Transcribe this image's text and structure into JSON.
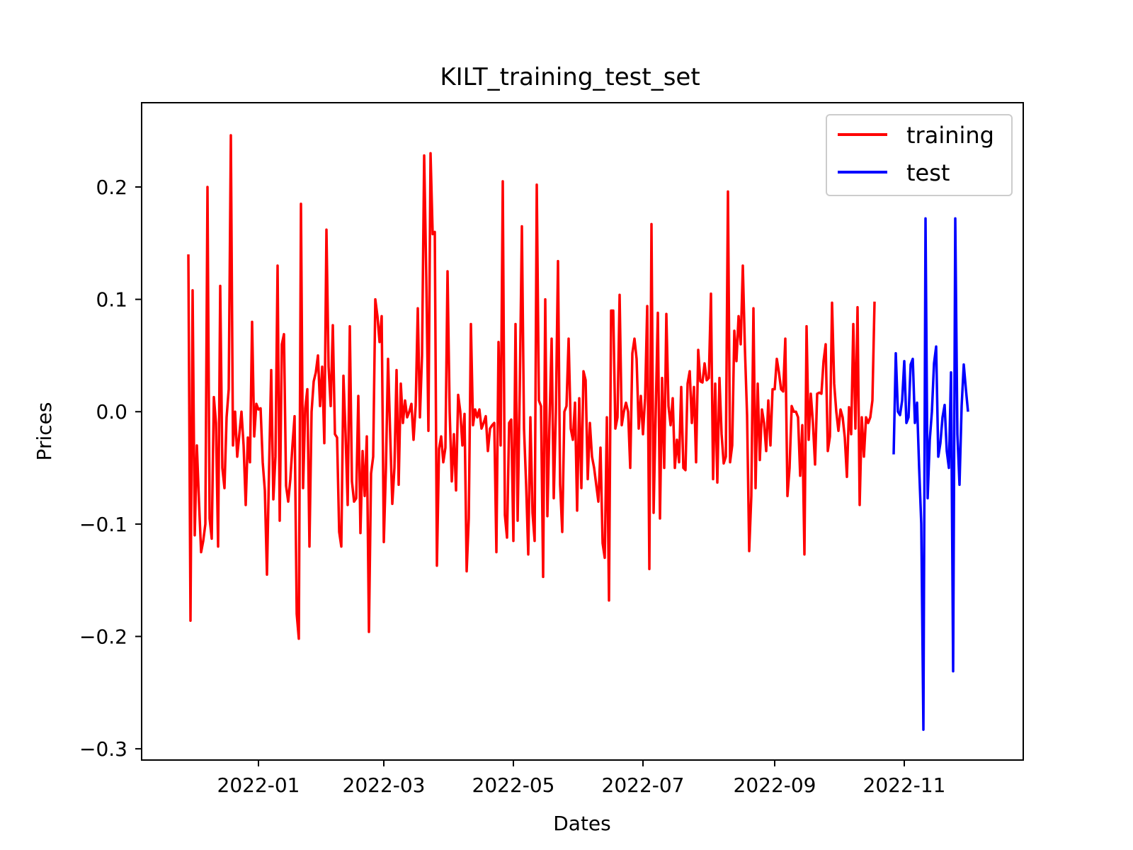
{
  "chart_data": {
    "type": "line",
    "title": "KILT_training_test_set",
    "xlabel": "Dates",
    "ylabel": "Prices",
    "ylim": [
      -0.31,
      0.275
    ],
    "xlim": [
      "2021-11-07",
      "2022-12-27"
    ],
    "x_ticks": [
      "2022-01-01",
      "2022-03-01",
      "2022-05-01",
      "2022-07-01",
      "2022-09-01",
      "2022-11-01"
    ],
    "x_tick_labels": [
      "2022-01",
      "2022-03",
      "2022-05",
      "2022-07",
      "2022-09",
      "2022-11"
    ],
    "y_ticks": [
      -0.3,
      -0.2,
      -0.1,
      0.0,
      0.1,
      0.2
    ],
    "y_tick_labels": [
      "−0.3",
      "−0.2",
      "−0.1",
      "0.0",
      "0.1",
      "0.2"
    ],
    "grid": false,
    "legend": "upper right",
    "series": [
      {
        "name": "training",
        "color": "#ff0000",
        "start_date": "2021-11-29",
        "values": [
          0.14,
          -0.186,
          0.108,
          -0.11,
          -0.03,
          -0.08,
          -0.125,
          -0.115,
          -0.1,
          0.2,
          -0.095,
          -0.113,
          0.013,
          -0.01,
          -0.12,
          0.112,
          -0.05,
          -0.068,
          -0.005,
          0.02,
          0.246,
          -0.03,
          0.0,
          -0.04,
          -0.02,
          0.0,
          -0.03,
          -0.083,
          -0.023,
          -0.045,
          0.08,
          -0.022,
          0.007,
          0.002,
          0.003,
          -0.045,
          -0.07,
          -0.145,
          -0.05,
          0.037,
          -0.078,
          -0.04,
          0.13,
          -0.097,
          0.06,
          0.069,
          -0.066,
          -0.08,
          -0.06,
          -0.03,
          -0.004,
          -0.18,
          -0.202,
          0.185,
          -0.068,
          0.003,
          0.02,
          -0.12,
          0.0,
          0.027,
          0.035,
          0.05,
          0.005,
          0.04,
          -0.028,
          0.162,
          0.04,
          0.005,
          0.077,
          -0.02,
          -0.023,
          -0.107,
          -0.12,
          0.032,
          -0.02,
          -0.083,
          0.076,
          -0.062,
          -0.08,
          -0.077,
          0.014,
          -0.108,
          -0.035,
          -0.075,
          -0.022,
          -0.196,
          -0.055,
          -0.04,
          0.1,
          0.085,
          0.062,
          0.085,
          -0.116,
          -0.05,
          0.047,
          -0.02,
          -0.082,
          -0.05,
          0.037,
          -0.065,
          0.025,
          -0.01,
          0.01,
          -0.005,
          0.0,
          0.007,
          -0.025,
          0.005,
          0.092,
          -0.005,
          0.05,
          0.228,
          0.12,
          -0.017,
          0.23,
          0.158,
          0.16,
          -0.137,
          -0.033,
          -0.022,
          -0.045,
          -0.032,
          0.125,
          0.0,
          -0.062,
          -0.02,
          -0.07,
          0.015,
          0.0,
          -0.03,
          -0.002,
          -0.142,
          -0.095,
          0.078,
          -0.012,
          0.002,
          -0.005,
          0.002,
          -0.015,
          -0.01,
          -0.004,
          -0.035,
          -0.015,
          -0.012,
          -0.01,
          -0.125,
          0.062,
          -0.03,
          0.205,
          -0.092,
          -0.112,
          -0.01,
          -0.007,
          -0.115,
          0.078,
          -0.097,
          0.02,
          0.165,
          -0.015,
          -0.065,
          -0.127,
          -0.005,
          -0.09,
          -0.115,
          0.202,
          0.01,
          0.005,
          -0.147,
          0.1,
          -0.093,
          -0.01,
          0.065,
          -0.077,
          0.0,
          0.134,
          -0.065,
          -0.107,
          0.0,
          0.005,
          0.065,
          -0.015,
          -0.025,
          0.008,
          -0.088,
          0.012,
          -0.068,
          0.036,
          0.028,
          -0.06,
          -0.01,
          -0.04,
          -0.05,
          -0.065,
          -0.08,
          -0.032,
          -0.117,
          -0.13,
          -0.005,
          -0.168,
          0.09,
          0.09,
          -0.015,
          -0.005,
          0.104,
          -0.012,
          0.0,
          0.008,
          0.0,
          -0.05,
          0.052,
          0.065,
          0.047,
          -0.015,
          0.014,
          -0.02,
          0.012,
          0.094,
          -0.14,
          0.167,
          -0.09,
          0.0,
          0.088,
          -0.095,
          0.03,
          -0.05,
          0.087,
          0.005,
          -0.012,
          0.012,
          -0.05,
          -0.025,
          -0.045,
          0.022,
          -0.05,
          -0.052,
          0.025,
          0.036,
          -0.01,
          0.022,
          -0.045,
          0.055,
          0.027,
          0.026,
          0.043,
          0.028,
          0.03,
          0.105,
          -0.06,
          0.025,
          -0.063,
          0.03,
          -0.02,
          -0.046,
          -0.04,
          0.196,
          -0.045,
          -0.03,
          0.072,
          0.045,
          0.085,
          0.06,
          0.13,
          0.055,
          -0.003,
          -0.124,
          -0.075,
          0.092,
          -0.068,
          0.025,
          -0.043,
          0.002,
          -0.01,
          -0.035,
          0.01,
          -0.03,
          0.02,
          0.02,
          0.047,
          0.035,
          0.02,
          0.018,
          0.065,
          -0.075,
          -0.05,
          0.005,
          0.0,
          0.0,
          -0.005,
          -0.057,
          -0.012,
          -0.127,
          0.076,
          -0.025,
          0.016,
          -0.01,
          -0.047,
          0.016,
          0.017,
          0.016,
          0.045,
          0.06,
          -0.035,
          -0.022,
          0.097,
          0.025,
          0.0,
          -0.017,
          0.002,
          -0.005,
          -0.023,
          -0.058,
          0.004,
          -0.02,
          0.078,
          -0.015,
          0.093,
          -0.083,
          -0.005,
          -0.04,
          -0.005,
          -0.01,
          -0.005,
          0.01,
          0.098
        ]
      },
      {
        "name": "test",
        "color": "#0000ff",
        "start_date": "2022-10-27",
        "values": [
          -0.038,
          0.052,
          0.0,
          -0.003,
          0.01,
          0.045,
          -0.01,
          -0.005,
          0.042,
          0.047,
          -0.01,
          0.008,
          -0.05,
          -0.1,
          -0.283,
          0.172,
          -0.077,
          -0.025,
          0.0,
          0.043,
          0.058,
          -0.04,
          -0.028,
          -0.005,
          0.006,
          -0.035,
          -0.05,
          0.035,
          -0.231,
          0.172,
          -0.02,
          -0.065,
          0.005,
          0.042,
          0.02,
          0.0
        ]
      }
    ]
  }
}
